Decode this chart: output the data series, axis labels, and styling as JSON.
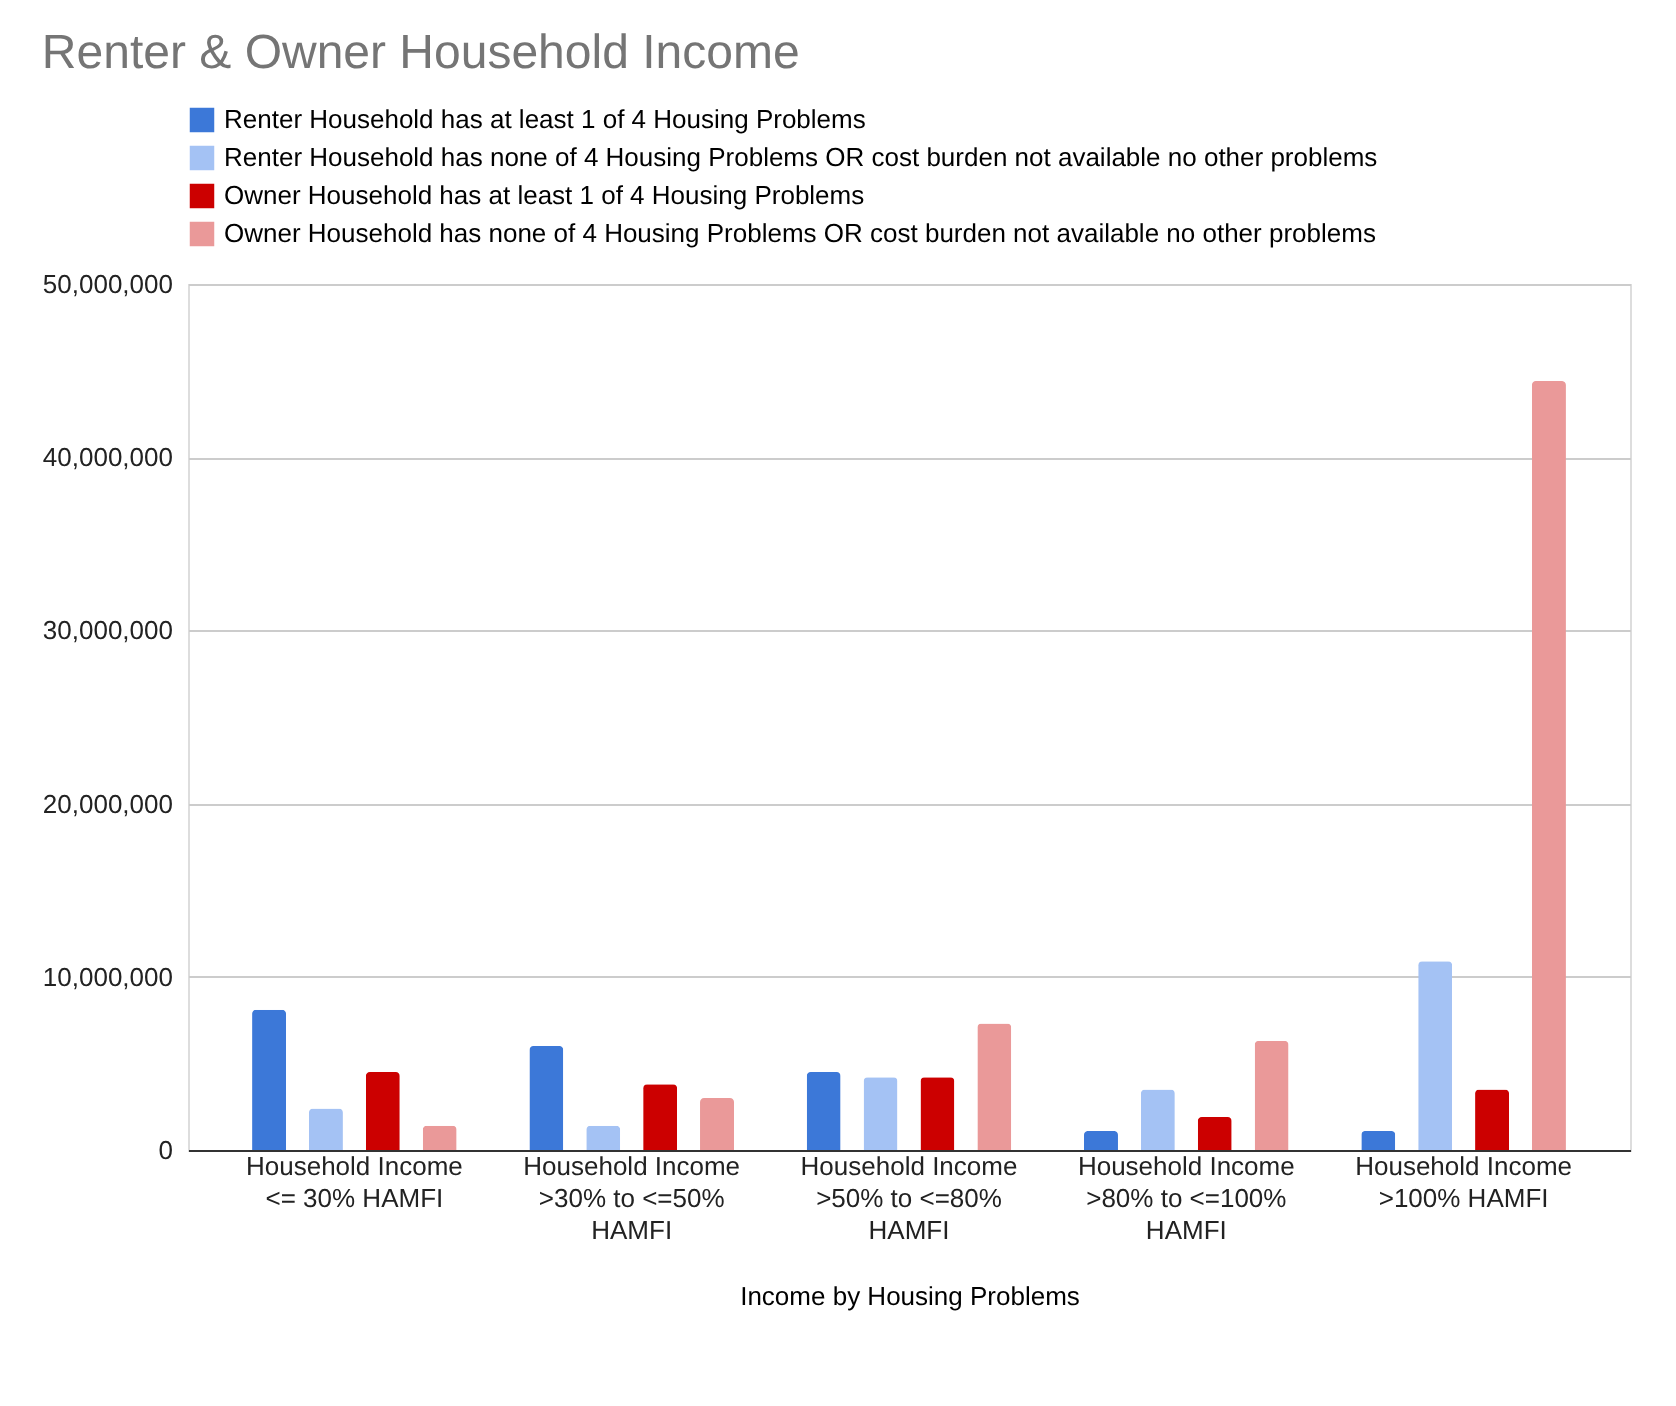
{
  "chart_data": {
    "type": "bar",
    "title": "Renter & Owner Household Income",
    "xlabel": "Income by Housing Problems",
    "categories": [
      "Household Income <= 30% HAMFI",
      "Household Income >30% to <=50% HAMFI",
      "Household Income >50% to <=80% HAMFI",
      "Household Income >80% to <=100% HAMFI",
      "Household Income >100% HAMFI"
    ],
    "series": [
      {
        "name": "Renter Household has at least 1 of 4 Housing Problems",
        "color": "#3c78d8",
        "values": [
          8100000,
          6000000,
          4500000,
          1100000,
          1100000
        ]
      },
      {
        "name": "Renter Household has none of 4 Housing Problems OR cost burden not available no other problems",
        "color": "#a4c2f4",
        "values": [
          2400000,
          1400000,
          4200000,
          3500000,
          10900000
        ]
      },
      {
        "name": "Owner Household has at least 1 of 4 Housing Problems",
        "color": "#cc0000",
        "values": [
          4500000,
          3800000,
          4200000,
          1900000,
          3500000
        ]
      },
      {
        "name": "Owner Household has none of 4 Housing Problems OR cost burden not available no other problems",
        "color": "#ea9999",
        "values": [
          1400000,
          3000000,
          7300000,
          6300000,
          44400000
        ]
      }
    ],
    "ylim": [
      0,
      50000000
    ],
    "yticks": [
      0,
      {
        "value": 10000000,
        "label": "10,000,000"
      },
      {
        "value": 20000000,
        "label": "20,000,000"
      },
      {
        "value": 30000000,
        "label": "30,000,000"
      },
      {
        "value": 40000000,
        "label": "40,000,000"
      },
      {
        "value": 50000000,
        "label": "50,000,000"
      }
    ],
    "grid": "y",
    "legend": "top"
  }
}
